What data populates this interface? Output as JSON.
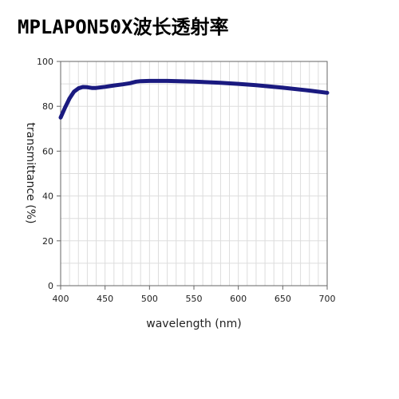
{
  "chart_data": {
    "type": "line",
    "title": "MPLAPON50X波长透射率",
    "xlabel": "wavelength (nm)",
    "ylabel": "transmittance (%)",
    "xlim": [
      400,
      700
    ],
    "ylim": [
      0,
      100
    ],
    "xticks": [
      400,
      450,
      500,
      550,
      600,
      650,
      700
    ],
    "yticks": [
      0,
      20,
      40,
      60,
      80,
      100
    ],
    "grid": true,
    "colors": {
      "line": "#1a1a80",
      "grid": "#dddddd",
      "axis": "#666666"
    },
    "series": [
      {
        "x": [
          400,
          405,
          410,
          415,
          420,
          425,
          430,
          435,
          440,
          450,
          460,
          470,
          478,
          485,
          490,
          500,
          520,
          550,
          580,
          600,
          620,
          650,
          680,
          700
        ],
        "y": [
          75,
          79.5,
          83.5,
          86.5,
          88,
          88.6,
          88.5,
          88.2,
          88.2,
          88.7,
          89.3,
          89.8,
          90.3,
          91.0,
          91.2,
          91.3,
          91.3,
          91.0,
          90.5,
          90.0,
          89.4,
          88.3,
          87.0,
          86.0
        ]
      }
    ]
  }
}
